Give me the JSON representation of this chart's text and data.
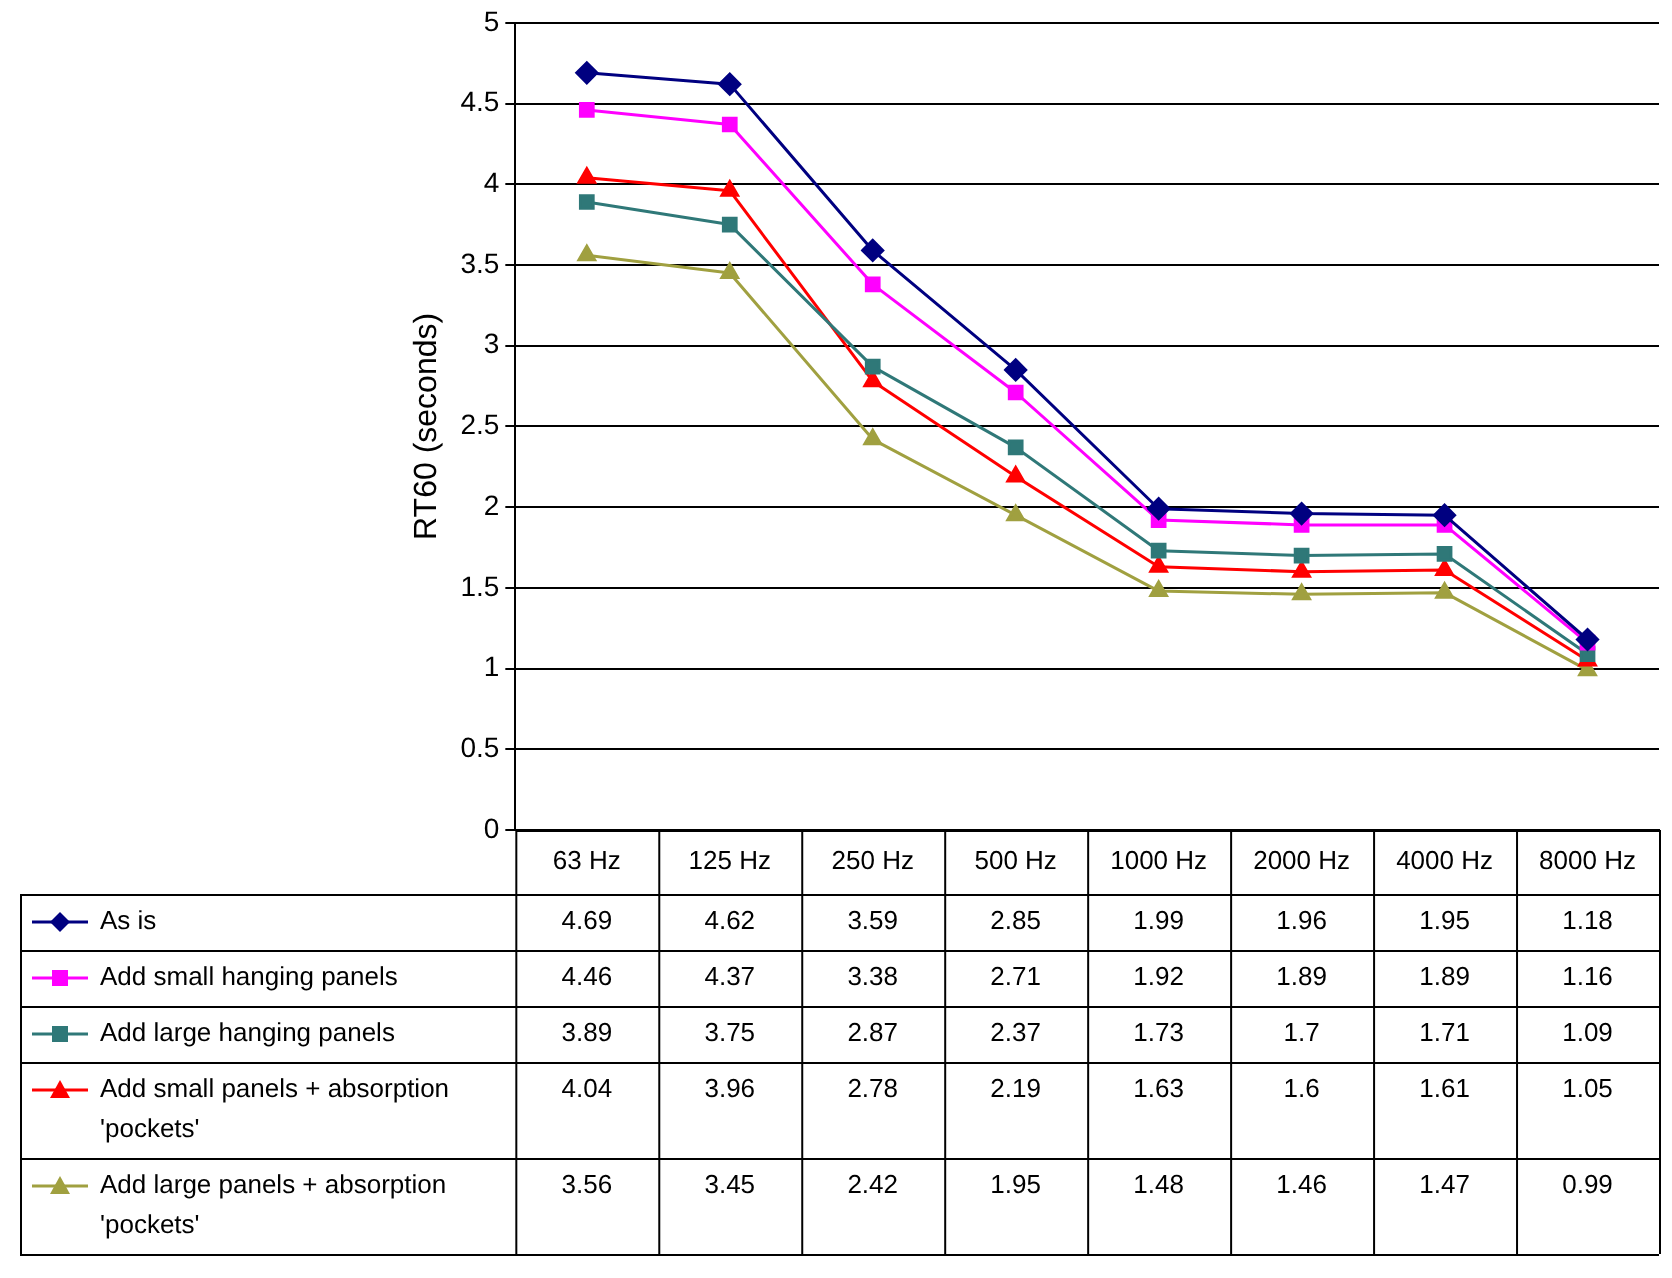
{
  "chart_data": {
    "type": "line",
    "ylabel": "RT60 (seconds)",
    "categories": [
      "63 Hz",
      "125 Hz",
      "250 Hz",
      "500 Hz",
      "1000 Hz",
      "2000 Hz",
      "4000 Hz",
      "8000 Hz"
    ],
    "ylim": [
      0,
      5
    ],
    "yticks": [
      0,
      0.5,
      1,
      1.5,
      2,
      2.5,
      3,
      3.5,
      4,
      4.5,
      5
    ],
    "grid": "y",
    "legend": "bottom left",
    "data_labels": true,
    "line_style": "solid",
    "series": [
      {
        "name": "As is",
        "color": "#000080",
        "marker": "diamond",
        "values": [
          4.69,
          4.62,
          3.59,
          2.85,
          1.99,
          1.96,
          1.95,
          1.18
        ]
      },
      {
        "name": "Add small hanging panels",
        "color": "#ff00ff",
        "marker": "square",
        "values": [
          4.46,
          4.37,
          3.38,
          2.71,
          1.92,
          1.89,
          1.89,
          1.16
        ]
      },
      {
        "name": "Add large hanging panels",
        "color": "#2f7878",
        "marker": "square",
        "values": [
          3.89,
          3.75,
          2.87,
          2.37,
          1.73,
          1.7,
          1.71,
          1.09
        ]
      },
      {
        "name": "Add small panels + absorption 'pockets'",
        "color": "#ff0000",
        "marker": "triangle",
        "values": [
          4.04,
          3.96,
          2.78,
          2.19,
          1.63,
          1.6,
          1.61,
          1.05
        ]
      },
      {
        "name": "Add large panels + absorption 'pockets'",
        "color": "#a0a040",
        "marker": "triangle",
        "values": [
          3.56,
          3.45,
          2.42,
          1.95,
          1.48,
          1.46,
          1.47,
          0.99
        ]
      }
    ]
  }
}
